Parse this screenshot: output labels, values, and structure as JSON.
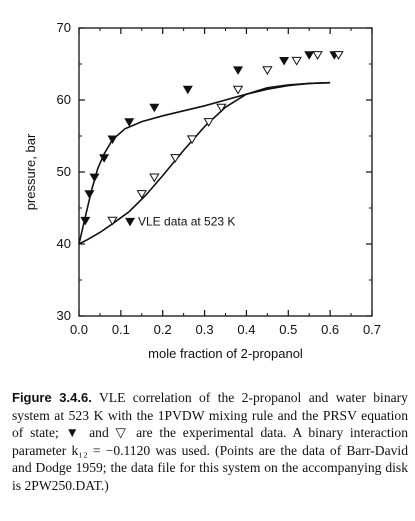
{
  "chart_data": {
    "type": "scatter",
    "xlabel": "mole fraction of 2-propanol",
    "ylabel": "pressure, bar",
    "xlim": [
      0.0,
      0.7
    ],
    "ylim": [
      30,
      70
    ],
    "x_ticks": [
      "0.0",
      "0.1",
      "0.2",
      "0.3",
      "0.4",
      "0.5",
      "0.6",
      "0.7"
    ],
    "y_ticks": [
      "30",
      "40",
      "50",
      "60",
      "70"
    ],
    "grid": false,
    "annotation": "VLE data at 523 K",
    "series": [
      {
        "kind": "filled-triangle-points",
        "points": [
          [
            0.015,
            43.3
          ],
          [
            0.025,
            47.0
          ],
          [
            0.037,
            49.3
          ],
          [
            0.06,
            52.0
          ],
          [
            0.08,
            54.6
          ],
          [
            0.12,
            57.0
          ],
          [
            0.18,
            59.0
          ],
          [
            0.26,
            61.5
          ],
          [
            0.38,
            64.2
          ],
          [
            0.49,
            65.5
          ],
          [
            0.55,
            66.3
          ],
          [
            0.61,
            66.3
          ]
        ]
      },
      {
        "kind": "open-triangle-points",
        "points": [
          [
            0.08,
            43.3
          ],
          [
            0.15,
            47.0
          ],
          [
            0.18,
            49.3
          ],
          [
            0.23,
            52.0
          ],
          [
            0.27,
            54.6
          ],
          [
            0.31,
            57.0
          ],
          [
            0.34,
            59.0
          ],
          [
            0.38,
            61.5
          ],
          [
            0.45,
            64.2
          ],
          [
            0.52,
            65.5
          ],
          [
            0.57,
            66.3
          ],
          [
            0.62,
            66.3
          ]
        ]
      },
      {
        "kind": "model-curve",
        "points": [
          [
            0.0,
            40.0
          ],
          [
            0.01,
            42.5
          ],
          [
            0.02,
            45.0
          ],
          [
            0.03,
            47.5
          ],
          [
            0.045,
            50.5
          ],
          [
            0.06,
            52.5
          ],
          [
            0.08,
            54.5
          ],
          [
            0.11,
            56.0
          ],
          [
            0.15,
            57.0
          ],
          [
            0.2,
            57.8
          ],
          [
            0.25,
            58.5
          ],
          [
            0.3,
            59.2
          ],
          [
            0.35,
            60.0
          ],
          [
            0.4,
            60.8
          ],
          [
            0.45,
            61.5
          ],
          [
            0.5,
            62.0
          ],
          [
            0.55,
            62.3
          ],
          [
            0.6,
            62.4
          ]
        ]
      },
      {
        "kind": "model-curve",
        "points": [
          [
            0.0,
            40.0
          ],
          [
            0.02,
            40.6
          ],
          [
            0.05,
            41.6
          ],
          [
            0.08,
            42.8
          ],
          [
            0.12,
            44.5
          ],
          [
            0.16,
            46.8
          ],
          [
            0.2,
            49.5
          ],
          [
            0.25,
            53.0
          ],
          [
            0.3,
            56.3
          ],
          [
            0.35,
            59.0
          ],
          [
            0.4,
            60.8
          ],
          [
            0.45,
            61.7
          ],
          [
            0.5,
            62.1
          ],
          [
            0.55,
            62.3
          ],
          [
            0.6,
            62.4
          ]
        ]
      }
    ]
  },
  "caption": {
    "label": "Figure 3.4.6.",
    "text": "VLE correlation of the 2-propanol and water binary system at 523 K with the 1PVDW mixing rule and the PRSV equation of state; ▼ and ▽ are the experimental data. A binary interaction parameter k₁₂ = −0.1120 was used. (Points are the data of Barr-David and Dodge 1959; the data file for this system on the accompanying disk is 2PW250.DAT.)"
  }
}
